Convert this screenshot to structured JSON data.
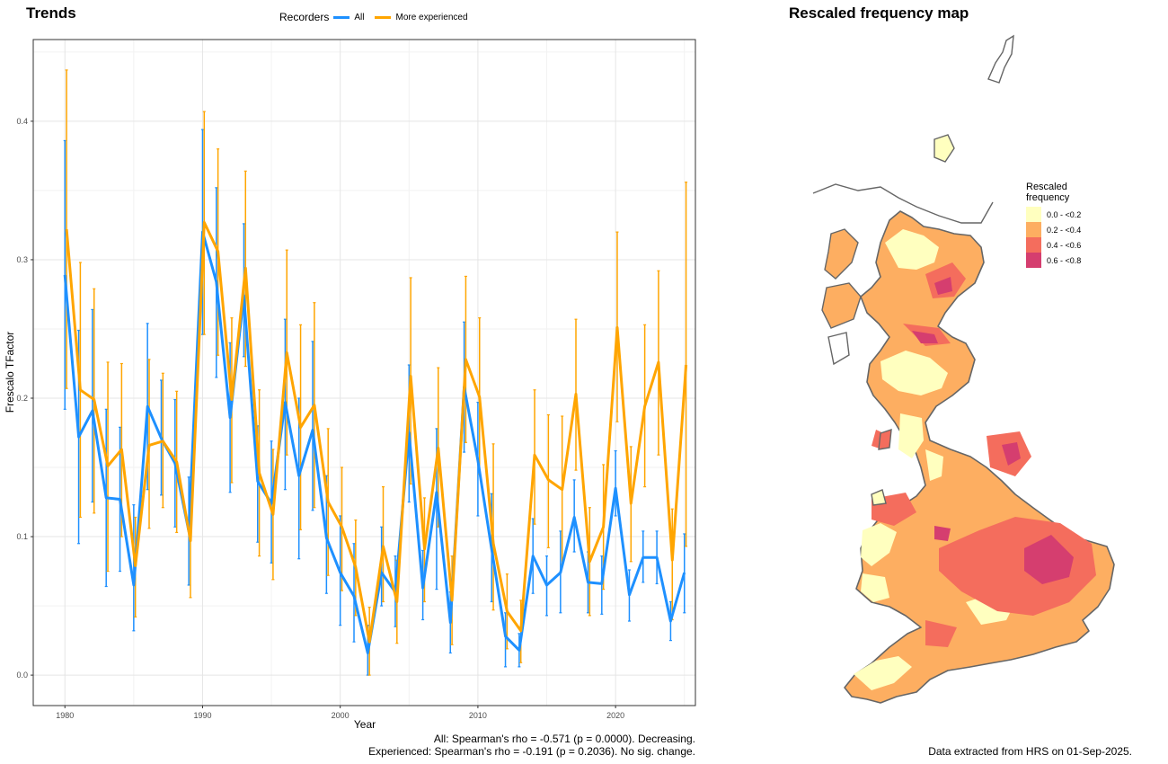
{
  "trends": {
    "title": "Trends",
    "legend_title": "Recorders",
    "stat_all": "All: Spearman's rho = -0.571 (p = 0.0000). Decreasing.",
    "stat_exp": "Experienced: Spearman's rho = -0.191 (p = 0.2036). No sig. change."
  },
  "map": {
    "title": "Rescaled frequency map",
    "legend_title_line1": "Rescaled",
    "legend_title_line2": "frequency",
    "legend": [
      {
        "label": "0.0 - <0.2",
        "color": "#ffffbf"
      },
      {
        "label": "0.2 - <0.4",
        "color": "#fdae61"
      },
      {
        "label": "0.4 - <0.6",
        "color": "#f46d5d"
      },
      {
        "label": "0.6 - <0.8",
        "color": "#d53e6f"
      }
    ],
    "footnote": "Data extracted from HRS on 01-Sep-2025."
  },
  "chart_data": {
    "type": "line",
    "xlabel": "Year",
    "ylabel": "Frescalo TFactor",
    "xlim": [
      1977.7,
      2025.8
    ],
    "ylim": [
      -0.022,
      0.459
    ],
    "xticks": [
      1980,
      1990,
      2000,
      2010,
      2020
    ],
    "yticks": [
      0.0,
      0.1,
      0.2,
      0.3,
      0.4
    ],
    "grid": true,
    "legend_position": "top",
    "x": [
      1980,
      1981,
      1982,
      1983,
      1984,
      1985,
      1986,
      1987,
      1988,
      1989,
      1990,
      1991,
      1992,
      1993,
      1994,
      1995,
      1996,
      1997,
      1998,
      1999,
      2000,
      2001,
      2002,
      2003,
      2004,
      2005,
      2006,
      2007,
      2008,
      2009,
      2010,
      2011,
      2012,
      2013,
      2014,
      2015,
      2016,
      2017,
      2018,
      2019,
      2020,
      2021,
      2022,
      2023,
      2024,
      2025
    ],
    "series": [
      {
        "name": "All",
        "color": "#1e90ff",
        "values": [
          0.289,
          0.172,
          0.191,
          0.128,
          0.127,
          0.065,
          0.194,
          0.171,
          0.153,
          0.104,
          0.32,
          0.284,
          0.186,
          0.274,
          0.14,
          0.124,
          0.197,
          0.144,
          0.177,
          0.099,
          0.074,
          0.057,
          0.016,
          0.074,
          0.06,
          0.175,
          0.063,
          0.132,
          0.038,
          0.208,
          0.155,
          0.091,
          0.028,
          0.018,
          0.086,
          0.065,
          0.074,
          0.114,
          0.067,
          0.066,
          0.135,
          0.058,
          0.085,
          0.085,
          0.039,
          0.074
        ],
        "lower": [
          0.192,
          0.095,
          0.125,
          0.064,
          0.075,
          0.032,
          0.134,
          0.13,
          0.107,
          0.065,
          0.246,
          0.215,
          0.132,
          0.23,
          0.096,
          0.081,
          0.134,
          0.084,
          0.119,
          0.059,
          0.036,
          0.024,
          0.0,
          0.05,
          0.035,
          0.125,
          0.04,
          0.062,
          0.016,
          0.161,
          0.115,
          0.053,
          0.006,
          0.006,
          0.059,
          0.043,
          0.045,
          0.089,
          0.045,
          0.044,
          0.115,
          0.039,
          0.067,
          0.066,
          0.025,
          0.045
        ],
        "upper": [
          0.386,
          0.249,
          0.264,
          0.192,
          0.179,
          0.123,
          0.254,
          0.213,
          0.199,
          0.143,
          0.394,
          0.352,
          0.24,
          0.326,
          0.18,
          0.169,
          0.257,
          0.2,
          0.241,
          0.144,
          0.115,
          0.095,
          0.036,
          0.107,
          0.086,
          0.224,
          0.09,
          0.178,
          0.06,
          0.255,
          0.197,
          0.131,
          0.045,
          0.03,
          0.113,
          0.086,
          0.104,
          0.141,
          0.089,
          0.086,
          0.162,
          0.076,
          0.104,
          0.104,
          0.053,
          0.102
        ]
      },
      {
        "name": "More experienced",
        "color": "#ffa500",
        "values": [
          0.322,
          0.206,
          0.199,
          0.151,
          0.163,
          0.079,
          0.166,
          0.169,
          0.154,
          0.097,
          0.327,
          0.306,
          0.199,
          0.294,
          0.146,
          0.116,
          0.233,
          0.179,
          0.195,
          0.125,
          0.107,
          0.078,
          0.024,
          0.093,
          0.053,
          0.216,
          0.091,
          0.164,
          0.054,
          0.228,
          0.201,
          0.095,
          0.046,
          0.032,
          0.159,
          0.141,
          0.134,
          0.203,
          0.082,
          0.107,
          0.251,
          0.124,
          0.194,
          0.226,
          0.083,
          0.224
        ],
        "lower": [
          0.207,
          0.114,
          0.117,
          0.075,
          0.1,
          0.042,
          0.106,
          0.121,
          0.103,
          0.056,
          0.246,
          0.231,
          0.139,
          0.223,
          0.086,
          0.069,
          0.159,
          0.105,
          0.121,
          0.072,
          0.061,
          0.043,
          0.0,
          0.053,
          0.023,
          0.138,
          0.053,
          0.107,
          0.022,
          0.168,
          0.145,
          0.047,
          0.019,
          0.009,
          0.109,
          0.092,
          0.08,
          0.148,
          0.043,
          0.062,
          0.183,
          0.082,
          0.136,
          0.159,
          0.04,
          0.093
        ],
        "upper": [
          0.437,
          0.298,
          0.279,
          0.226,
          0.225,
          0.114,
          0.228,
          0.218,
          0.205,
          0.137,
          0.407,
          0.38,
          0.258,
          0.364,
          0.206,
          0.163,
          0.307,
          0.253,
          0.269,
          0.178,
          0.15,
          0.112,
          0.049,
          0.136,
          0.083,
          0.287,
          0.128,
          0.222,
          0.086,
          0.288,
          0.258,
          0.167,
          0.073,
          0.054,
          0.206,
          0.188,
          0.187,
          0.257,
          0.121,
          0.152,
          0.32,
          0.165,
          0.253,
          0.292,
          0.12,
          0.356
        ]
      }
    ]
  }
}
